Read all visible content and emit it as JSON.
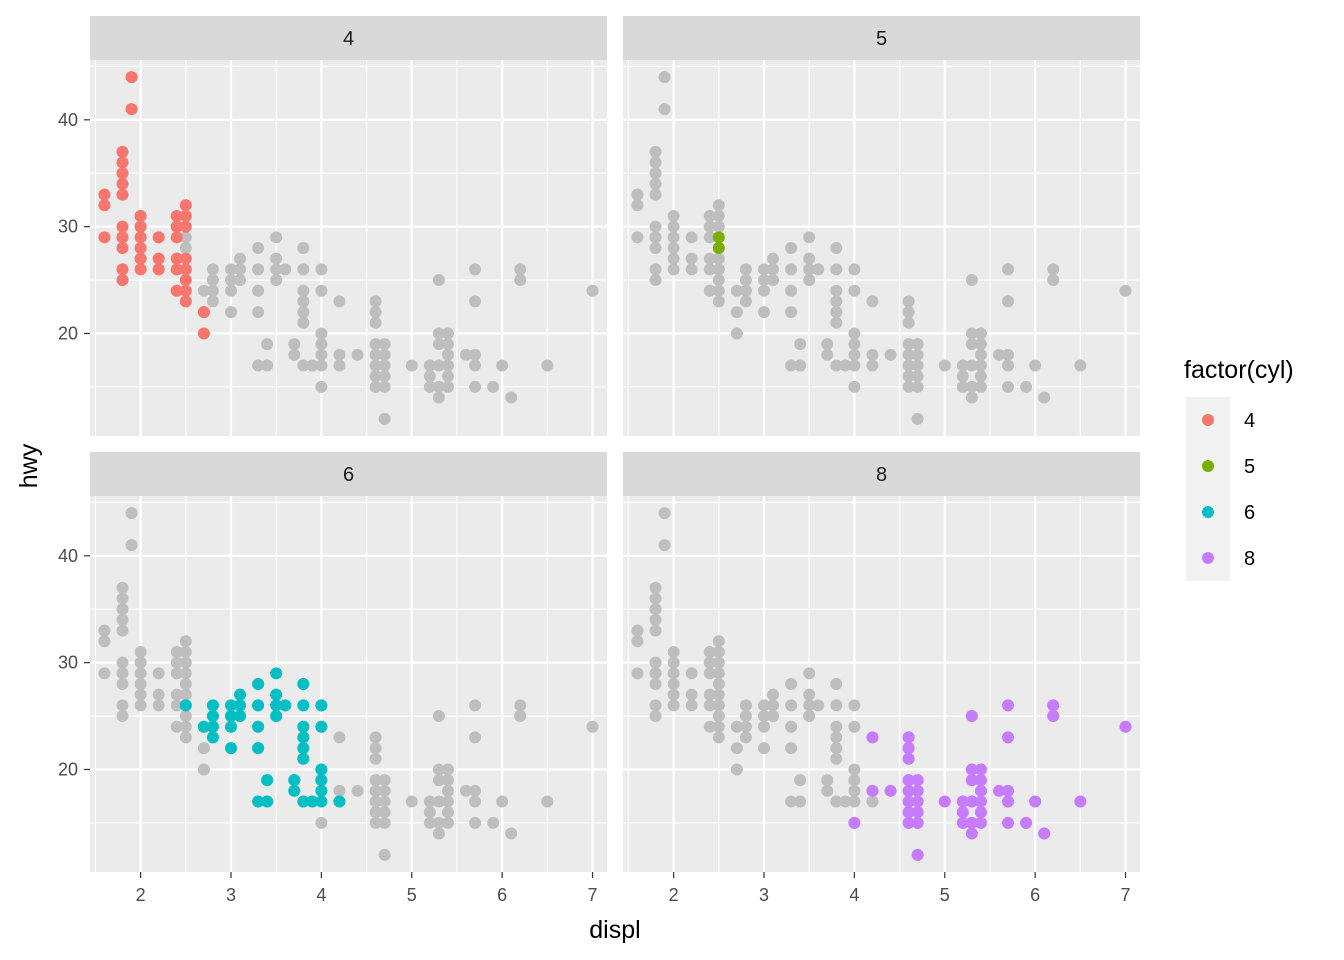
{
  "chart_data": {
    "type": "scatter",
    "facet_variable": "cyl",
    "facets": [
      "4",
      "5",
      "6",
      "8"
    ],
    "xlabel": "displ",
    "ylabel": "hwy",
    "xlim": [
      1.44,
      7.16
    ],
    "ylim": [
      10.4,
      45.6
    ],
    "x_ticks": [
      2,
      3,
      4,
      5,
      6,
      7
    ],
    "x_tick_labels": [
      "2",
      "3",
      "4",
      "5",
      "6",
      "7"
    ],
    "y_ticks": [
      20,
      30,
      40
    ],
    "y_tick_labels": [
      "20",
      "30",
      "40"
    ],
    "grid": true,
    "background_color": "#ebebeb",
    "strip_color": "#d9d9d9",
    "background_points_color": "#bebebe",
    "legend": {
      "title": "factor(cyl)",
      "position": "right",
      "entries": [
        {
          "label": "4",
          "color": "#F8766D"
        },
        {
          "label": "5",
          "color": "#7CAE00"
        },
        {
          "label": "6",
          "color": "#00BFC4"
        },
        {
          "label": "8",
          "color": "#C77CFF"
        }
      ]
    },
    "series": [
      {
        "name": "4",
        "color": "#F8766D",
        "points": [
          [
            1.6,
            33
          ],
          [
            1.6,
            32
          ],
          [
            1.6,
            29
          ],
          [
            1.8,
            29
          ],
          [
            1.8,
            29
          ],
          [
            1.8,
            30
          ],
          [
            1.8,
            26
          ],
          [
            1.8,
            25
          ],
          [
            1.8,
            28
          ],
          [
            1.8,
            34
          ],
          [
            1.8,
            35
          ],
          [
            1.8,
            36
          ],
          [
            1.8,
            37
          ],
          [
            1.8,
            33
          ],
          [
            1.9,
            44
          ],
          [
            1.9,
            41
          ],
          [
            2.0,
            31
          ],
          [
            2.0,
            30
          ],
          [
            2.0,
            29
          ],
          [
            2.0,
            28
          ],
          [
            2.0,
            27
          ],
          [
            2.0,
            26
          ],
          [
            2.2,
            29
          ],
          [
            2.2,
            27
          ],
          [
            2.2,
            26
          ],
          [
            2.4,
            31
          ],
          [
            2.4,
            30
          ],
          [
            2.4,
            29
          ],
          [
            2.4,
            27
          ],
          [
            2.4,
            26
          ],
          [
            2.4,
            24
          ],
          [
            2.5,
            32
          ],
          [
            2.5,
            31
          ],
          [
            2.5,
            30
          ],
          [
            2.5,
            27
          ],
          [
            2.5,
            26
          ],
          [
            2.5,
            25
          ],
          [
            2.5,
            24
          ],
          [
            2.5,
            23
          ],
          [
            2.7,
            22
          ],
          [
            2.7,
            20
          ]
        ]
      },
      {
        "name": "5",
        "color": "#7CAE00",
        "points": [
          [
            2.5,
            29
          ],
          [
            2.5,
            28
          ]
        ]
      },
      {
        "name": "6",
        "color": "#00BFC4",
        "points": [
          [
            2.5,
            26
          ],
          [
            2.7,
            24
          ],
          [
            2.8,
            26
          ],
          [
            2.8,
            25
          ],
          [
            2.8,
            24
          ],
          [
            2.8,
            23
          ],
          [
            3.0,
            26
          ],
          [
            3.0,
            25
          ],
          [
            3.0,
            24
          ],
          [
            3.0,
            22
          ],
          [
            3.1,
            27
          ],
          [
            3.1,
            26
          ],
          [
            3.1,
            25
          ],
          [
            3.3,
            28
          ],
          [
            3.3,
            26
          ],
          [
            3.3,
            24
          ],
          [
            3.3,
            22
          ],
          [
            3.3,
            17
          ],
          [
            3.4,
            19
          ],
          [
            3.4,
            17
          ],
          [
            3.5,
            29
          ],
          [
            3.5,
            27
          ],
          [
            3.5,
            26
          ],
          [
            3.5,
            25
          ],
          [
            3.6,
            26
          ],
          [
            3.7,
            19
          ],
          [
            3.7,
            18
          ],
          [
            3.8,
            28
          ],
          [
            3.8,
            26
          ],
          [
            3.8,
            24
          ],
          [
            3.8,
            23
          ],
          [
            3.8,
            22
          ],
          [
            3.8,
            21
          ],
          [
            3.8,
            17
          ],
          [
            3.9,
            17
          ],
          [
            4.0,
            26
          ],
          [
            4.0,
            24
          ],
          [
            4.0,
            20
          ],
          [
            4.0,
            19
          ],
          [
            4.0,
            18
          ],
          [
            4.0,
            17
          ],
          [
            4.2,
            17
          ]
        ]
      },
      {
        "name": "8",
        "color": "#C77CFF",
        "points": [
          [
            4.0,
            15
          ],
          [
            4.2,
            23
          ],
          [
            4.2,
            18
          ],
          [
            4.4,
            18
          ],
          [
            4.6,
            23
          ],
          [
            4.6,
            22
          ],
          [
            4.6,
            21
          ],
          [
            4.6,
            19
          ],
          [
            4.6,
            18
          ],
          [
            4.6,
            17
          ],
          [
            4.6,
            16
          ],
          [
            4.6,
            15
          ],
          [
            4.7,
            19
          ],
          [
            4.7,
            18
          ],
          [
            4.7,
            17
          ],
          [
            4.7,
            16
          ],
          [
            4.7,
            15
          ],
          [
            4.7,
            12
          ],
          [
            5.0,
            17
          ],
          [
            5.2,
            17
          ],
          [
            5.2,
            16
          ],
          [
            5.2,
            15
          ],
          [
            5.3,
            25
          ],
          [
            5.3,
            20
          ],
          [
            5.3,
            19
          ],
          [
            5.3,
            17
          ],
          [
            5.3,
            15
          ],
          [
            5.3,
            14
          ],
          [
            5.4,
            20
          ],
          [
            5.4,
            19
          ],
          [
            5.4,
            18
          ],
          [
            5.4,
            17
          ],
          [
            5.4,
            16
          ],
          [
            5.4,
            15
          ],
          [
            5.6,
            18
          ],
          [
            5.7,
            26
          ],
          [
            5.7,
            23
          ],
          [
            5.7,
            18
          ],
          [
            5.7,
            17
          ],
          [
            5.7,
            15
          ],
          [
            5.9,
            15
          ],
          [
            6.0,
            17
          ],
          [
            6.1,
            14
          ],
          [
            6.2,
            26
          ],
          [
            6.2,
            25
          ],
          [
            6.5,
            17
          ],
          [
            7.0,
            24
          ]
        ]
      }
    ]
  }
}
